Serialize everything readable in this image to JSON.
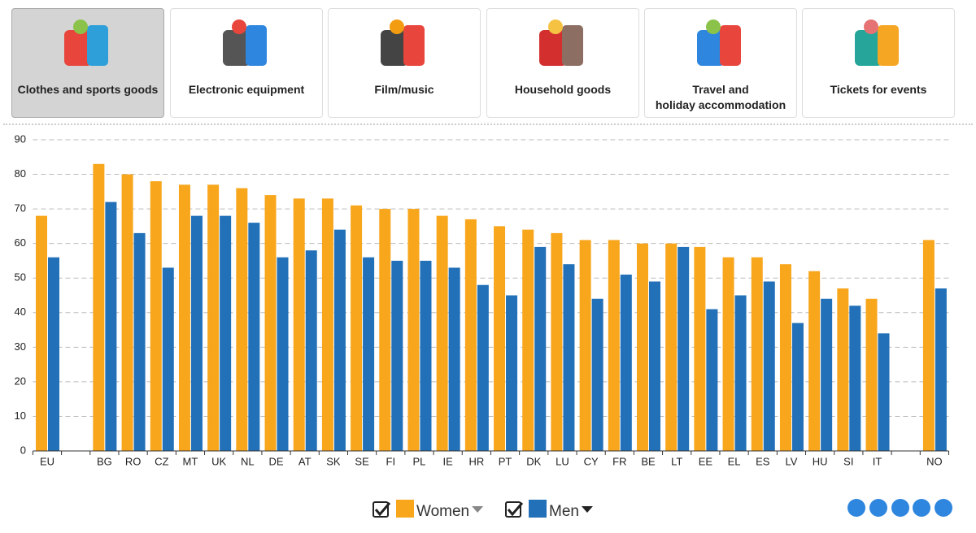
{
  "tabs": [
    {
      "label": "Clothes and sports goods",
      "selected": true
    },
    {
      "label": "Electronic equipment",
      "selected": false
    },
    {
      "label": "Film/music",
      "selected": false
    },
    {
      "label": "Household goods",
      "selected": false
    },
    {
      "label": "Travel and\nholiday accommodation",
      "selected": false
    },
    {
      "label": "Tickets for events",
      "selected": false
    }
  ],
  "chart_data": {
    "type": "bar",
    "categories": [
      "EU",
      null,
      "BG",
      "RO",
      "CZ",
      "MT",
      "UK",
      "NL",
      "DE",
      "AT",
      "SK",
      "SE",
      "FI",
      "PL",
      "IE",
      "HR",
      "PT",
      "DK",
      "LU",
      "CY",
      "FR",
      "BE",
      "LT",
      "EE",
      "EL",
      "ES",
      "LV",
      "HU",
      "SI",
      "IT",
      null,
      "NO"
    ],
    "series": [
      {
        "name": "Women",
        "color": "#f8a61c",
        "values": [
          68,
          null,
          83,
          80,
          78,
          77,
          77,
          76,
          74,
          73,
          73,
          71,
          70,
          70,
          68,
          67,
          65,
          64,
          63,
          61,
          61,
          60,
          60,
          59,
          56,
          56,
          54,
          52,
          47,
          44,
          null,
          61
        ]
      },
      {
        "name": "Men",
        "color": "#2170b8",
        "values": [
          56,
          null,
          72,
          63,
          53,
          68,
          68,
          66,
          56,
          58,
          64,
          56,
          55,
          55,
          53,
          48,
          45,
          59,
          54,
          44,
          51,
          49,
          59,
          41,
          45,
          49,
          37,
          44,
          42,
          34,
          null,
          47
        ]
      }
    ],
    "ylim": [
      0,
      90
    ],
    "yticks": [
      0,
      10,
      20,
      30,
      40,
      50,
      60,
      70,
      80,
      90
    ],
    "grid": true
  }
}
